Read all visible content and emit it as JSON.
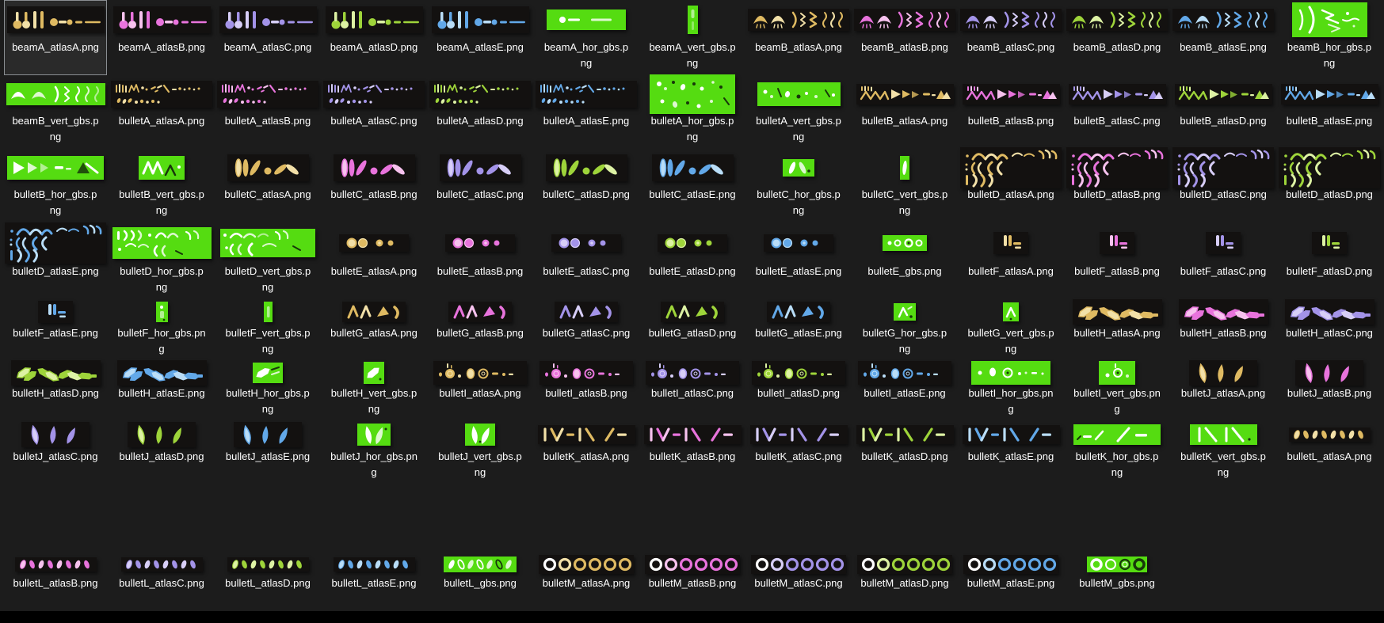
{
  "window": {
    "background": "#1c1c1c",
    "thumb_backdrop": "#131110",
    "footer_strip": "#000000"
  },
  "selection": {
    "selected": "beamA_atlasA.png"
  },
  "palette": {
    "greenscreen": "#55DC11",
    "sprite_white": "#ffffff",
    "dark_speck": "#17370a",
    "selection_border": "#8a8e92",
    "label_color": "#ffffff",
    "colors": {
      "gold": {
        "main": "#DFBA62",
        "light": "#F2E0A8"
      },
      "pink": {
        "main": "#E873DC",
        "light": "#F7C2EE"
      },
      "purple": {
        "main": "#A393E8",
        "light": "#D7CEF7"
      },
      "green": {
        "main": "#9ED43A",
        "light": "#DDF2A4"
      },
      "blue": {
        "main": "#62A8E8",
        "light": "#B9DDF7"
      }
    }
  },
  "grid": {
    "columns": 13,
    "row_item_counts": [
      13,
      13,
      13,
      13,
      13,
      13,
      13,
      11
    ]
  },
  "items": [
    {
      "name": "beamA_atlasA.png",
      "shape": "beamA",
      "variant": "atlas",
      "color": "gold"
    },
    {
      "name": "beamA_atlasB.png",
      "shape": "beamA",
      "variant": "atlas",
      "color": "pink"
    },
    {
      "name": "beamA_atlasC.png",
      "shape": "beamA",
      "variant": "atlas",
      "color": "purple"
    },
    {
      "name": "beamA_atlasD.png",
      "shape": "beamA",
      "variant": "atlas",
      "color": "green"
    },
    {
      "name": "beamA_atlasE.png",
      "shape": "beamA",
      "variant": "atlas",
      "color": "blue"
    },
    {
      "name": "beamA_hor_gbs.png",
      "shape": "beamA",
      "variant": "hor_gbs",
      "color": "greenscreen"
    },
    {
      "name": "beamA_vert_gbs.png",
      "shape": "beamA",
      "variant": "vert_gbs",
      "color": "greenscreen"
    },
    {
      "name": "beamB_atlasA.png",
      "shape": "beamB",
      "variant": "atlas",
      "color": "gold"
    },
    {
      "name": "beamB_atlasB.png",
      "shape": "beamB",
      "variant": "atlas",
      "color": "pink"
    },
    {
      "name": "beamB_atlasC.png",
      "shape": "beamB",
      "variant": "atlas",
      "color": "purple"
    },
    {
      "name": "beamB_atlasD.png",
      "shape": "beamB",
      "variant": "atlas",
      "color": "green"
    },
    {
      "name": "beamB_atlasE.png",
      "shape": "beamB",
      "variant": "atlas",
      "color": "blue"
    },
    {
      "name": "beamB_hor_gbs.png",
      "shape": "beamB",
      "variant": "hor_gbs",
      "color": "greenscreen"
    },
    {
      "name": "beamB_vert_gbs.png",
      "shape": "beamB",
      "variant": "vert_gbs",
      "color": "greenscreen"
    },
    {
      "name": "bulletA_atlasA.png",
      "shape": "bulletA",
      "variant": "atlas",
      "color": "gold"
    },
    {
      "name": "bulletA_atlasB.png",
      "shape": "bulletA",
      "variant": "atlas",
      "color": "pink"
    },
    {
      "name": "bulletA_atlasC.png",
      "shape": "bulletA",
      "variant": "atlas",
      "color": "purple"
    },
    {
      "name": "bulletA_atlasD.png",
      "shape": "bulletA",
      "variant": "atlas",
      "color": "green"
    },
    {
      "name": "bulletA_atlasE.png",
      "shape": "bulletA",
      "variant": "atlas",
      "color": "blue"
    },
    {
      "name": "bulletA_hor_gbs.png",
      "shape": "bulletA",
      "variant": "hor_gbs",
      "color": "greenscreen"
    },
    {
      "name": "bulletA_vert_gbs.png",
      "shape": "bulletA",
      "variant": "vert_gbs",
      "color": "greenscreen"
    },
    {
      "name": "bulletB_atlasA.png",
      "shape": "bulletB",
      "variant": "atlas",
      "color": "gold"
    },
    {
      "name": "bulletB_atlasB.png",
      "shape": "bulletB",
      "variant": "atlas",
      "color": "pink"
    },
    {
      "name": "bulletB_atlasC.png",
      "shape": "bulletB",
      "variant": "atlas",
      "color": "purple"
    },
    {
      "name": "bulletB_atlasD.png",
      "shape": "bulletB",
      "variant": "atlas",
      "color": "green"
    },
    {
      "name": "bulletB_atlasE.png",
      "shape": "bulletB",
      "variant": "atlas",
      "color": "blue"
    },
    {
      "name": "bulletB_hor_gbs.png",
      "shape": "bulletB",
      "variant": "hor_gbs",
      "color": "greenscreen"
    },
    {
      "name": "bulletB_vert_gbs.png",
      "shape": "bulletB",
      "variant": "vert_gbs",
      "color": "greenscreen"
    },
    {
      "name": "bulletC_atlasA.png",
      "shape": "bulletC",
      "variant": "atlas",
      "color": "gold"
    },
    {
      "name": "bulletC_atlasB.png",
      "shape": "bulletC",
      "variant": "atlas",
      "color": "pink"
    },
    {
      "name": "bulletC_atlasC.png",
      "shape": "bulletC",
      "variant": "atlas",
      "color": "purple"
    },
    {
      "name": "bulletC_atlasD.png",
      "shape": "bulletC",
      "variant": "atlas",
      "color": "green"
    },
    {
      "name": "bulletC_atlasE.png",
      "shape": "bulletC",
      "variant": "atlas",
      "color": "blue"
    },
    {
      "name": "bulletC_hor_gbs.png",
      "shape": "bulletC",
      "variant": "hor_gbs",
      "color": "greenscreen"
    },
    {
      "name": "bulletC_vert_gbs.png",
      "shape": "bulletC",
      "variant": "vert_gbs",
      "color": "greenscreen"
    },
    {
      "name": "bulletD_atlasA.png",
      "shape": "bulletD",
      "variant": "atlas",
      "color": "gold"
    },
    {
      "name": "bulletD_atlasB.png",
      "shape": "bulletD",
      "variant": "atlas",
      "color": "pink"
    },
    {
      "name": "bulletD_atlasC.png",
      "shape": "bulletD",
      "variant": "atlas",
      "color": "purple"
    },
    {
      "name": "bulletD_atlasD.png",
      "shape": "bulletD",
      "variant": "atlas",
      "color": "green"
    },
    {
      "name": "bulletD_atlasE.png",
      "shape": "bulletD",
      "variant": "atlas",
      "color": "blue"
    },
    {
      "name": "bulletD_hor_gbs.png",
      "shape": "bulletD",
      "variant": "hor_gbs",
      "color": "greenscreen"
    },
    {
      "name": "bulletD_vert_gbs.png",
      "shape": "bulletD",
      "variant": "vert_gbs",
      "color": "greenscreen"
    },
    {
      "name": "bulletE_atlasA.png",
      "shape": "bulletE",
      "variant": "atlas",
      "color": "gold"
    },
    {
      "name": "bulletE_atlasB.png",
      "shape": "bulletE",
      "variant": "atlas",
      "color": "pink"
    },
    {
      "name": "bulletE_atlasC.png",
      "shape": "bulletE",
      "variant": "atlas",
      "color": "purple"
    },
    {
      "name": "bulletE_atlasD.png",
      "shape": "bulletE",
      "variant": "atlas",
      "color": "green"
    },
    {
      "name": "bulletE_atlasE.png",
      "shape": "bulletE",
      "variant": "atlas",
      "color": "blue"
    },
    {
      "name": "bulletE_gbs.png",
      "shape": "bulletE",
      "variant": "gbs",
      "color": "greenscreen"
    },
    {
      "name": "bulletF_atlasA.png",
      "shape": "bulletF",
      "variant": "atlas",
      "color": "gold"
    },
    {
      "name": "bulletF_atlasB.png",
      "shape": "bulletF",
      "variant": "atlas",
      "color": "pink"
    },
    {
      "name": "bulletF_atlasC.png",
      "shape": "bulletF",
      "variant": "atlas",
      "color": "purple"
    },
    {
      "name": "bulletF_atlasD.png",
      "shape": "bulletF",
      "variant": "atlas",
      "color": "green"
    },
    {
      "name": "bulletF_atlasE.png",
      "shape": "bulletF",
      "variant": "atlas",
      "color": "blue"
    },
    {
      "name": "bulletF_hor_gbs.png",
      "shape": "bulletF",
      "variant": "hor_gbs",
      "color": "greenscreen"
    },
    {
      "name": "bulletF_vert_gbs.png",
      "shape": "bulletF",
      "variant": "vert_gbs",
      "color": "greenscreen"
    },
    {
      "name": "bulletG_atlasA.png",
      "shape": "bulletG",
      "variant": "atlas",
      "color": "gold"
    },
    {
      "name": "bulletG_atlasB.png",
      "shape": "bulletG",
      "variant": "atlas",
      "color": "pink"
    },
    {
      "name": "bulletG_atlasC.png",
      "shape": "bulletG",
      "variant": "atlas",
      "color": "purple"
    },
    {
      "name": "bulletG_atlasD.png",
      "shape": "bulletG",
      "variant": "atlas",
      "color": "green"
    },
    {
      "name": "bulletG_atlasE.png",
      "shape": "bulletG",
      "variant": "atlas",
      "color": "blue"
    },
    {
      "name": "bulletG_hor_gbs.png",
      "shape": "bulletG",
      "variant": "hor_gbs",
      "color": "greenscreen"
    },
    {
      "name": "bulletG_vert_gbs.png",
      "shape": "bulletG",
      "variant": "vert_gbs",
      "color": "greenscreen"
    },
    {
      "name": "bulletH_atlasA.png",
      "shape": "bulletH",
      "variant": "atlas",
      "color": "gold"
    },
    {
      "name": "bulletH_atlasB.png",
      "shape": "bulletH",
      "variant": "atlas",
      "color": "pink"
    },
    {
      "name": "bulletH_atlasC.png",
      "shape": "bulletH",
      "variant": "atlas",
      "color": "purple"
    },
    {
      "name": "bulletH_atlasD.png",
      "shape": "bulletH",
      "variant": "atlas",
      "color": "green"
    },
    {
      "name": "bulletH_atlasE.png",
      "shape": "bulletH",
      "variant": "atlas",
      "color": "blue"
    },
    {
      "name": "bulletH_hor_gbs.png",
      "shape": "bulletH",
      "variant": "hor_gbs",
      "color": "greenscreen"
    },
    {
      "name": "bulletH_vert_gbs.png",
      "shape": "bulletH",
      "variant": "vert_gbs",
      "color": "greenscreen"
    },
    {
      "name": "bulletI_atlasA.png",
      "shape": "bulletI",
      "variant": "atlas",
      "color": "gold"
    },
    {
      "name": "bulletI_atlasB.png",
      "shape": "bulletI",
      "variant": "atlas",
      "color": "pink"
    },
    {
      "name": "bulletI_atlasC.png",
      "shape": "bulletI",
      "variant": "atlas",
      "color": "purple"
    },
    {
      "name": "bulletI_atlasD.png",
      "shape": "bulletI",
      "variant": "atlas",
      "color": "green"
    },
    {
      "name": "bulletI_atlasE.png",
      "shape": "bulletI",
      "variant": "atlas",
      "color": "blue"
    },
    {
      "name": "bulletI_hor_gbs.png",
      "shape": "bulletI",
      "variant": "hor_gbs",
      "color": "greenscreen"
    },
    {
      "name": "bulletI_vert_gbs.png",
      "shape": "bulletI",
      "variant": "vert_gbs",
      "color": "greenscreen"
    },
    {
      "name": "bulletJ_atlasA.png",
      "shape": "bulletJ",
      "variant": "atlas",
      "color": "gold"
    },
    {
      "name": "bulletJ_atlasB.png",
      "shape": "bulletJ",
      "variant": "atlas",
      "color": "pink"
    },
    {
      "name": "bulletJ_atlasC.png",
      "shape": "bulletJ",
      "variant": "atlas",
      "color": "purple"
    },
    {
      "name": "bulletJ_atlasD.png",
      "shape": "bulletJ",
      "variant": "atlas",
      "color": "green"
    },
    {
      "name": "bulletJ_atlasE.png",
      "shape": "bulletJ",
      "variant": "atlas",
      "color": "blue"
    },
    {
      "name": "bulletJ_hor_gbs.png",
      "shape": "bulletJ",
      "variant": "hor_gbs",
      "color": "greenscreen"
    },
    {
      "name": "bulletJ_vert_gbs.png",
      "shape": "bulletJ",
      "variant": "vert_gbs",
      "color": "greenscreen"
    },
    {
      "name": "bulletK_atlasA.png",
      "shape": "bulletK",
      "variant": "atlas",
      "color": "gold"
    },
    {
      "name": "bulletK_atlasB.png",
      "shape": "bulletK",
      "variant": "atlas",
      "color": "pink"
    },
    {
      "name": "bulletK_atlasC.png",
      "shape": "bulletK",
      "variant": "atlas",
      "color": "purple"
    },
    {
      "name": "bulletK_atlasD.png",
      "shape": "bulletK",
      "variant": "atlas",
      "color": "green"
    },
    {
      "name": "bulletK_atlasE.png",
      "shape": "bulletK",
      "variant": "atlas",
      "color": "blue"
    },
    {
      "name": "bulletK_hor_gbs.png",
      "shape": "bulletK",
      "variant": "hor_gbs",
      "color": "greenscreen"
    },
    {
      "name": "bulletK_vert_gbs.png",
      "shape": "bulletK",
      "variant": "vert_gbs",
      "color": "greenscreen"
    },
    {
      "name": "bulletL_atlasA.png",
      "shape": "bulletL",
      "variant": "atlas",
      "color": "gold"
    },
    {
      "name": "bulletL_atlasB.png",
      "shape": "bulletL",
      "variant": "atlas",
      "color": "pink"
    },
    {
      "name": "bulletL_atlasC.png",
      "shape": "bulletL",
      "variant": "atlas",
      "color": "purple"
    },
    {
      "name": "bulletL_atlasD.png",
      "shape": "bulletL",
      "variant": "atlas",
      "color": "green"
    },
    {
      "name": "bulletL_atlasE.png",
      "shape": "bulletL",
      "variant": "atlas",
      "color": "blue"
    },
    {
      "name": "bulletL_gbs.png",
      "shape": "bulletL",
      "variant": "gbs",
      "color": "greenscreen"
    },
    {
      "name": "bulletM_atlasA.png",
      "shape": "bulletM",
      "variant": "atlas",
      "color": "gold"
    },
    {
      "name": "bulletM_atlasB.png",
      "shape": "bulletM",
      "variant": "atlas",
      "color": "pink"
    },
    {
      "name": "bulletM_atlasC.png",
      "shape": "bulletM",
      "variant": "atlas",
      "color": "purple"
    },
    {
      "name": "bulletM_atlasD.png",
      "shape": "bulletM",
      "variant": "atlas",
      "color": "green"
    },
    {
      "name": "bulletM_atlasE.png",
      "shape": "bulletM",
      "variant": "atlas",
      "color": "blue"
    },
    {
      "name": "bulletM_gbs.png",
      "shape": "bulletM",
      "variant": "gbs",
      "color": "greenscreen"
    }
  ]
}
